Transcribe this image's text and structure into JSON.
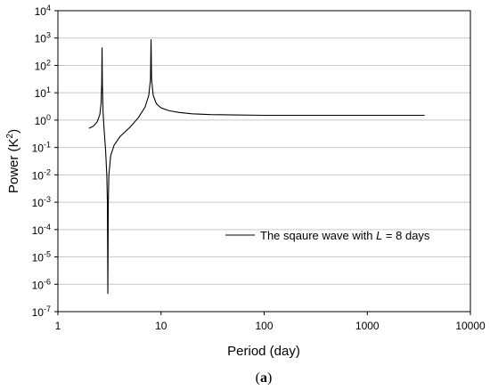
{
  "chart_data": {
    "type": "line",
    "xlabel": "Period (day)",
    "ylabel_main": "Power (K",
    "ylabel_sup": "2",
    "ylabel_close": ")",
    "x_scale": "log",
    "y_scale": "log",
    "xlim": [
      1,
      10000
    ],
    "ylim": [
      1e-07,
      10000
    ],
    "x_ticks": [
      {
        "value": 1,
        "label": "1"
      },
      {
        "value": 10,
        "label": "10"
      },
      {
        "value": 100,
        "label": "100"
      },
      {
        "value": 1000,
        "label": "1000"
      },
      {
        "value": 10000,
        "label": "10000"
      }
    ],
    "y_ticks": [
      {
        "value": 1e-07,
        "base": "10",
        "exp": "-7"
      },
      {
        "value": 1e-06,
        "base": "10",
        "exp": "-6"
      },
      {
        "value": 1e-05,
        "base": "10",
        "exp": "-5"
      },
      {
        "value": 0.0001,
        "base": "10",
        "exp": "-4"
      },
      {
        "value": 0.001,
        "base": "10",
        "exp": "-3"
      },
      {
        "value": 0.01,
        "base": "10",
        "exp": "-2"
      },
      {
        "value": 0.1,
        "base": "10",
        "exp": "-1"
      },
      {
        "value": 1,
        "base": "10",
        "exp": "0"
      },
      {
        "value": 10,
        "base": "10",
        "exp": "1"
      },
      {
        "value": 100,
        "base": "10",
        "exp": "2"
      },
      {
        "value": 1000,
        "base": "10",
        "exp": "3"
      },
      {
        "value": 10000,
        "base": "10",
        "exp": "4"
      }
    ],
    "grid": {
      "horizontal": true,
      "vertical": false
    },
    "legend_position": "right-middle",
    "legend_prefix": "The sqaure wave with ",
    "legend_var": "L",
    "legend_suffix": " = 8 days",
    "line_color": "#000000",
    "series": [
      {
        "points": [
          [
            2.0,
            0.5
          ],
          [
            2.2,
            0.6
          ],
          [
            2.4,
            0.85
          ],
          [
            2.55,
            1.6
          ],
          [
            2.62,
            4
          ],
          [
            2.66,
            20
          ],
          [
            2.68,
            450
          ],
          [
            2.7,
            20
          ],
          [
            2.74,
            2
          ],
          [
            2.8,
            0.5
          ],
          [
            2.9,
            0.08
          ],
          [
            2.98,
            0.01
          ],
          [
            3.02,
            0.001
          ],
          [
            3.05,
            4.5e-07
          ],
          [
            3.08,
            0.001
          ],
          [
            3.12,
            0.01
          ],
          [
            3.25,
            0.05
          ],
          [
            3.5,
            0.12
          ],
          [
            4.0,
            0.25
          ],
          [
            5.0,
            0.55
          ],
          [
            6.0,
            1.2
          ],
          [
            7.0,
            3
          ],
          [
            7.6,
            8
          ],
          [
            7.9,
            30
          ],
          [
            8.0,
            900
          ],
          [
            8.1,
            30
          ],
          [
            8.4,
            8
          ],
          [
            9.0,
            4
          ],
          [
            10,
            2.8
          ],
          [
            12,
            2.2
          ],
          [
            15,
            1.9
          ],
          [
            20,
            1.7
          ],
          [
            30,
            1.6
          ],
          [
            50,
            1.55
          ],
          [
            100,
            1.5
          ],
          [
            300,
            1.5
          ],
          [
            1000,
            1.5
          ],
          [
            3600,
            1.5
          ]
        ]
      }
    ]
  },
  "caption": {
    "open": "(",
    "letter": "a",
    "close": ")"
  }
}
